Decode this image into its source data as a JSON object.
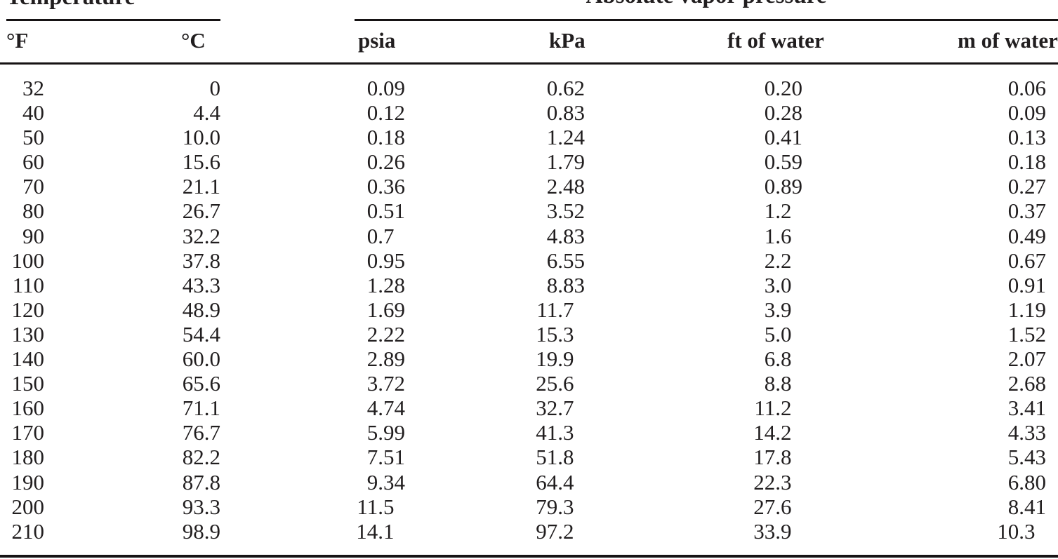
{
  "document": {
    "kind": "scanned-reference-table",
    "group_headers": [
      {
        "label": "Temperature"
      },
      {
        "label": "Absolute vapor pressure"
      }
    ],
    "columns": [
      {
        "label": "°F"
      },
      {
        "label": "°C"
      },
      {
        "label": "psia"
      },
      {
        "label": "kPa"
      },
      {
        "label": "ft of water"
      },
      {
        "label": "m of water"
      }
    ],
    "rows": [
      [
        "32",
        "0",
        "0.09",
        "0.62",
        "0.20",
        "0.06"
      ],
      [
        "40",
        "4.4",
        "0.12",
        "0.83",
        "0.28",
        "0.09"
      ],
      [
        "50",
        "10.0",
        "0.18",
        "1.24",
        "0.41",
        "0.13"
      ],
      [
        "60",
        "15.6",
        "0.26",
        "1.79",
        "0.59",
        "0.18"
      ],
      [
        "70",
        "21.1",
        "0.36",
        "2.48",
        "0.89",
        "0.27"
      ],
      [
        "80",
        "26.7",
        "0.51",
        "3.52",
        "1.2",
        "0.37"
      ],
      [
        "90",
        "32.2",
        "0.7",
        "4.83",
        "1.6",
        "0.49"
      ],
      [
        "100",
        "37.8",
        "0.95",
        "6.55",
        "2.2",
        "0.67"
      ],
      [
        "110",
        "43.3",
        "1.28",
        "8.83",
        "3.0",
        "0.91"
      ],
      [
        "120",
        "48.9",
        "1.69",
        "11.7",
        "3.9",
        "1.19"
      ],
      [
        "130",
        "54.4",
        "2.22",
        "15.3",
        "5.0",
        "1.52"
      ],
      [
        "140",
        "60.0",
        "2.89",
        "19.9",
        "6.8",
        "2.07"
      ],
      [
        "150",
        "65.6",
        "3.72",
        "25.6",
        "8.8",
        "2.68"
      ],
      [
        "160",
        "71.1",
        "4.74",
        "32.7",
        "11.2",
        "3.41"
      ],
      [
        "170",
        "76.7",
        "5.99",
        "41.3",
        "14.2",
        "4.33"
      ],
      [
        "180",
        "82.2",
        "7.51",
        "51.8",
        "17.8",
        "5.43"
      ],
      [
        "190",
        "87.8",
        "9.34",
        "64.4",
        "22.3",
        "6.80"
      ],
      [
        "200",
        "93.3",
        "11.5",
        "79.3",
        "27.6",
        "8.41"
      ],
      [
        "210",
        "98.9",
        "14.1",
        "97.2",
        "33.9",
        "10.3"
      ]
    ]
  },
  "colors": {
    "background": "#ffffff",
    "text": "#211e1f",
    "rule": "#161314"
  }
}
